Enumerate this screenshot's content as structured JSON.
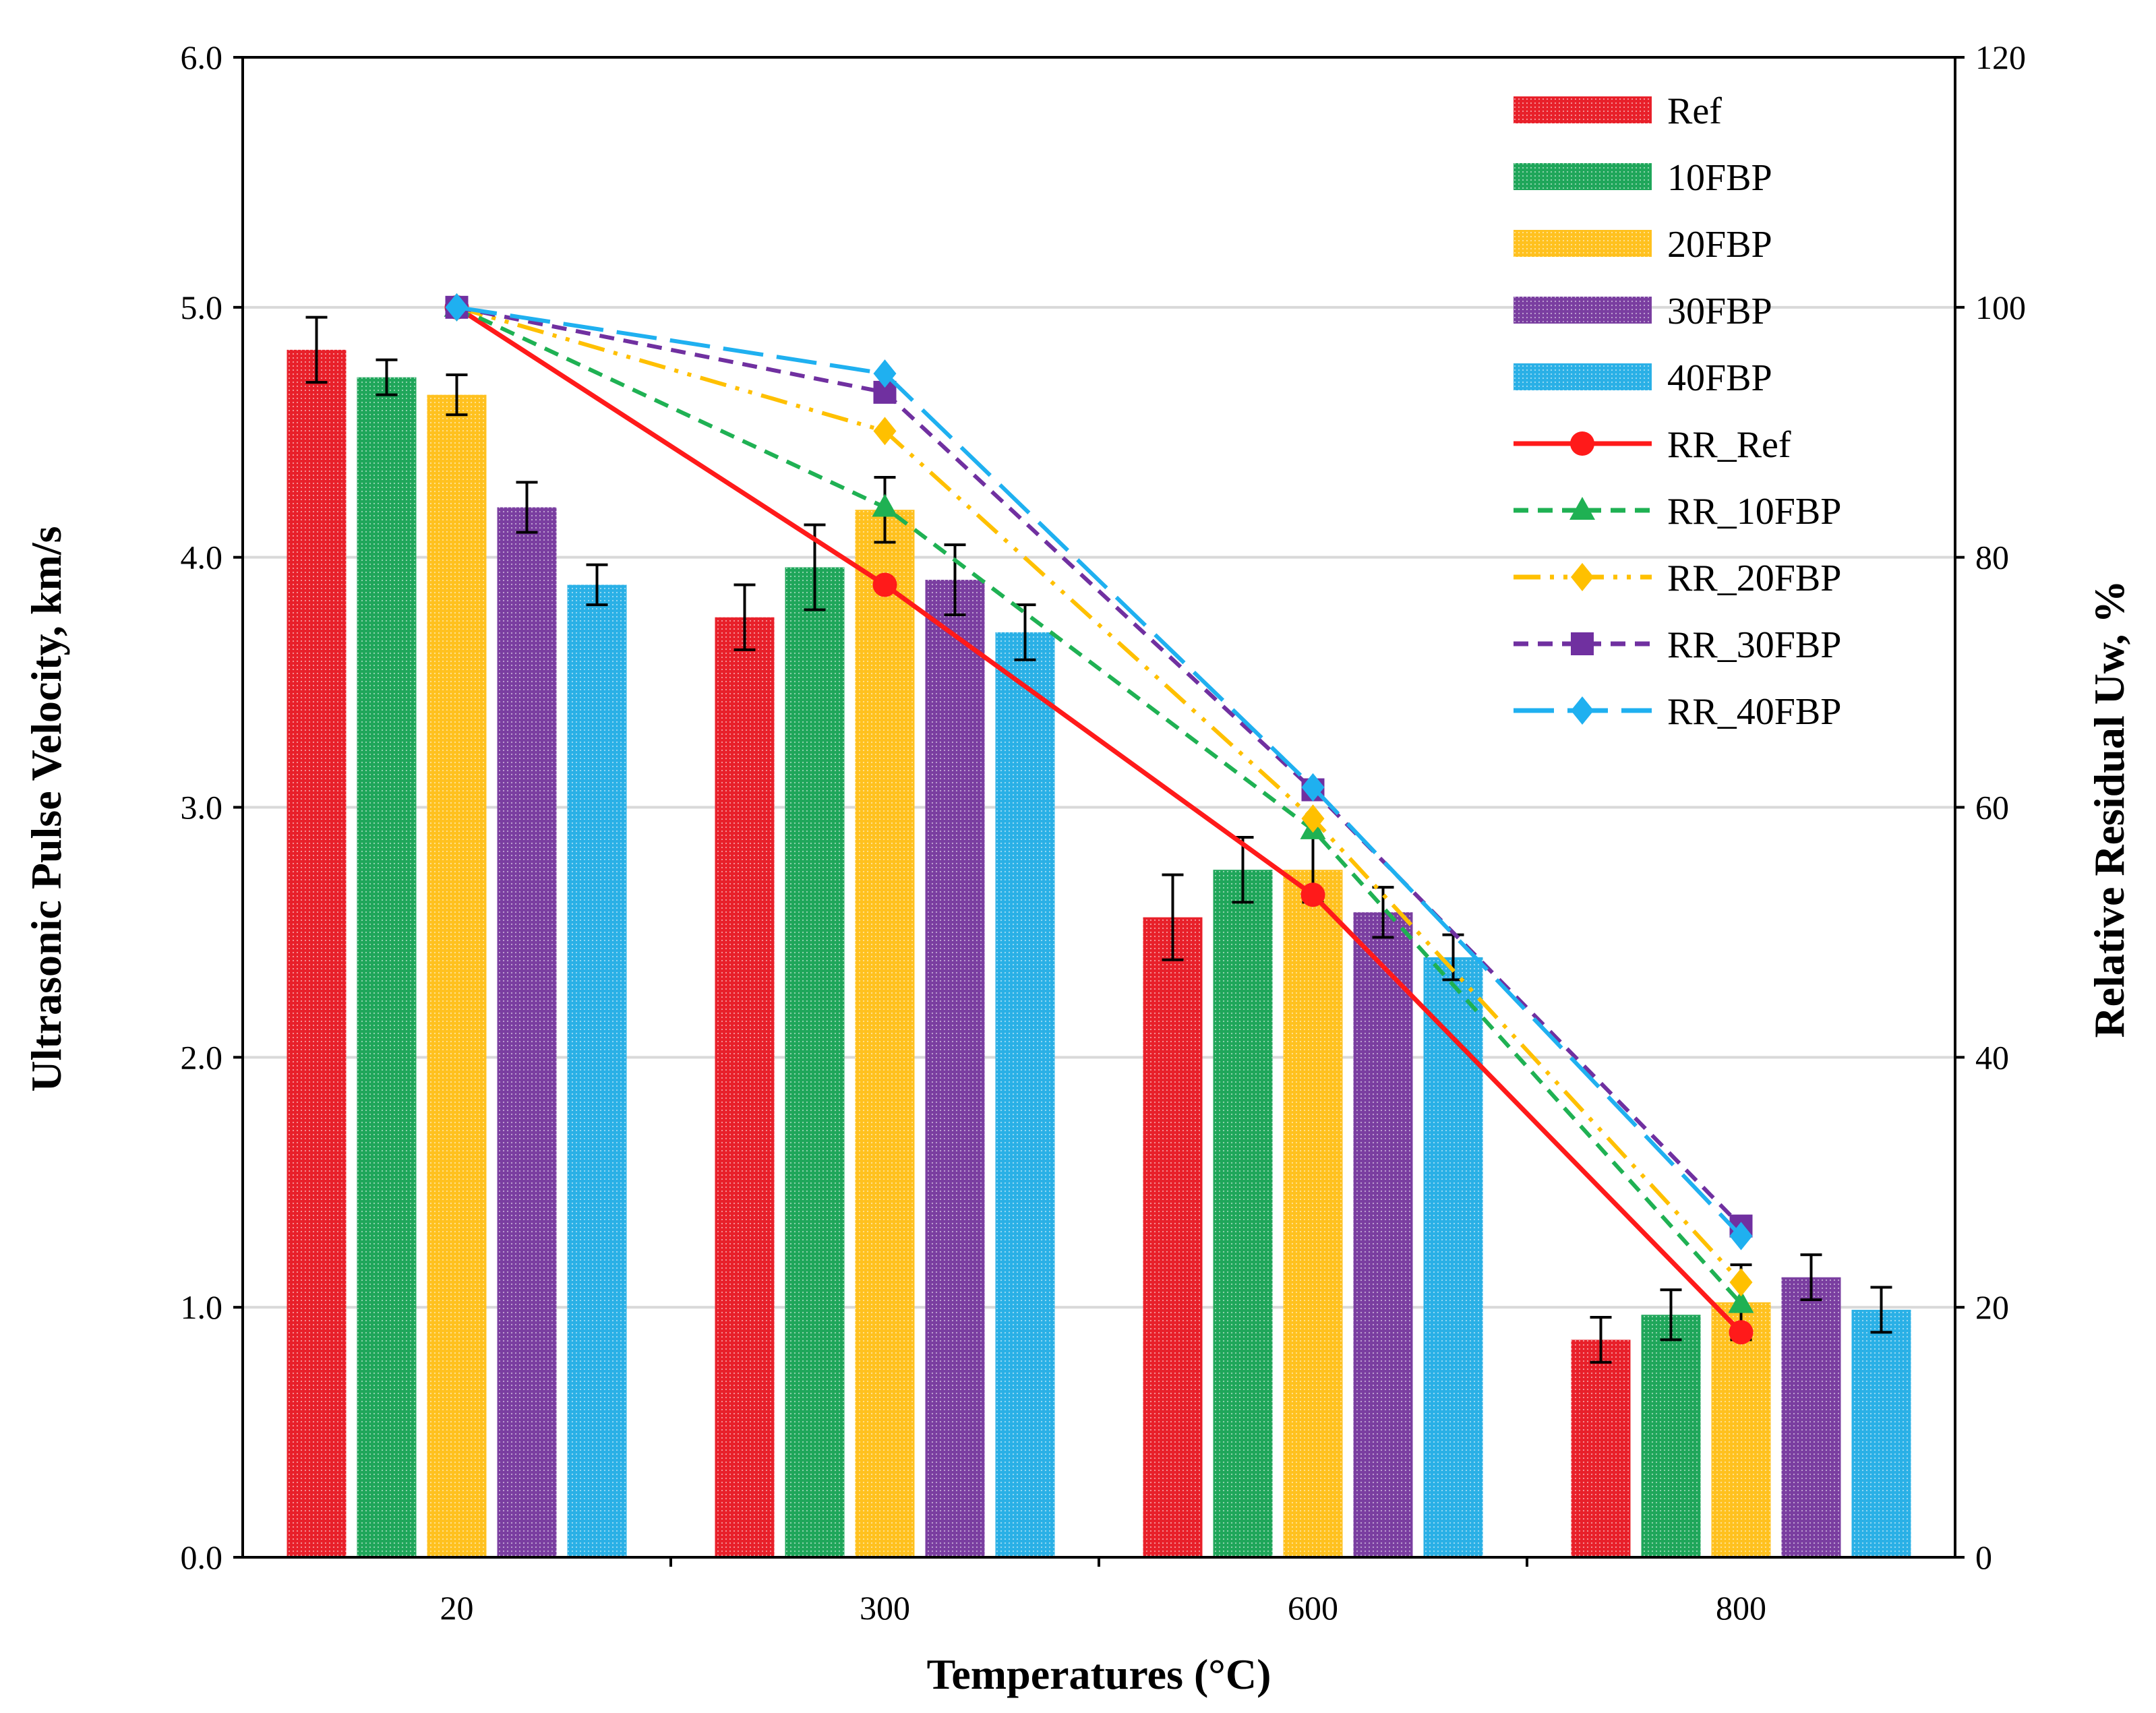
{
  "chart_data": {
    "type": "bar",
    "title": "",
    "xlabel": "Temperatures (°C)",
    "ylabel": "Ultrasonic Pulse Velocity, km/s",
    "y2label": "Relative Residual Uw, %",
    "categories": [
      "20",
      "300",
      "600",
      "800"
    ],
    "ylim": [
      0,
      6.0
    ],
    "y2lim": [
      0,
      120
    ],
    "yticks": [
      "0.0",
      "1.0",
      "2.0",
      "3.0",
      "4.0",
      "5.0",
      "6.0"
    ],
    "y2ticks": [
      "0",
      "20",
      "40",
      "60",
      "80",
      "100",
      "120"
    ],
    "grid": true,
    "legend_position": "top-right",
    "bar_series": [
      {
        "name": "Ref",
        "color": "#e8202a",
        "values": [
          4.83,
          3.76,
          2.56,
          0.87
        ],
        "errors": [
          0.13,
          0.13,
          0.17,
          0.09
        ]
      },
      {
        "name": "10FBP",
        "color": "#1fa65a",
        "values": [
          4.72,
          3.96,
          2.75,
          0.97
        ],
        "errors": [
          0.07,
          0.17,
          0.13,
          0.1
        ]
      },
      {
        "name": "20FBP",
        "color": "#ffc11f",
        "values": [
          4.65,
          4.19,
          2.75,
          1.02
        ],
        "errors": [
          0.08,
          0.13,
          0.13,
          0.15
        ]
      },
      {
        "name": "30FBP",
        "color": "#7a3ea0",
        "values": [
          4.2,
          3.91,
          2.58,
          1.12
        ],
        "errors": [
          0.1,
          0.14,
          0.1,
          0.09
        ]
      },
      {
        "name": "40FBP",
        "color": "#2ab0e6",
        "values": [
          3.89,
          3.7,
          2.4,
          0.99
        ],
        "errors": [
          0.08,
          0.11,
          0.09,
          0.09
        ]
      }
    ],
    "line_series": [
      {
        "name": "RR_Ref",
        "color": "#ff1a1a",
        "dash": "solid",
        "marker": "circle",
        "values": [
          100,
          77.8,
          53.0,
          18.0
        ]
      },
      {
        "name": "RR_10FBP",
        "color": "#1fb153",
        "dash": "dashed",
        "marker": "triangle",
        "values": [
          100,
          84.0,
          58.2,
          20.3
        ]
      },
      {
        "name": "RR_20FBP",
        "color": "#ffc000",
        "dash": "dash-dot-dot",
        "marker": "diamond",
        "values": [
          100,
          90.1,
          59.1,
          22.0
        ]
      },
      {
        "name": "RR_30FBP",
        "color": "#7030a0",
        "dash": "dashed",
        "marker": "square",
        "values": [
          100,
          93.2,
          61.4,
          26.5
        ]
      },
      {
        "name": "RR_40FBP",
        "color": "#1fb0f0",
        "dash": "long-dash",
        "marker": "diamond",
        "values": [
          100,
          94.7,
          61.6,
          25.7
        ]
      }
    ]
  }
}
